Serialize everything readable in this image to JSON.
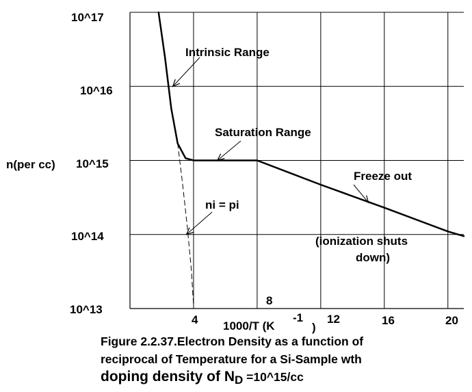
{
  "chart_data": {
    "type": "line",
    "ylabel": "n(per cc)",
    "xlabel_main": "1000/T (K",
    "xlabel_exp": "-1",
    "xlabel_close": ")",
    "y_scale": "log",
    "ylim": [
      10000000000000.0,
      1e+17
    ],
    "xlim": [
      0,
      21
    ],
    "grid": true,
    "x_ticks": [
      {
        "value": 4,
        "label": "4"
      },
      {
        "value": 8,
        "label": "8"
      },
      {
        "value": 12,
        "label": "12"
      },
      {
        "value": 16,
        "label": "16"
      },
      {
        "value": 20,
        "label": "20"
      }
    ],
    "x_grid": [
      4,
      8,
      12,
      16,
      20
    ],
    "y_ticks": [
      {
        "value": 10000000000000.0,
        "label": "10^13"
      },
      {
        "value": 100000000000000.0,
        "label": "10^14"
      },
      {
        "value": 1000000000000000.0,
        "label": "10^15"
      },
      {
        "value": 1e+16,
        "label": "10^16"
      },
      {
        "value": 1e+17,
        "label": "10^17"
      }
    ],
    "series": [
      {
        "style": "solid",
        "points": [
          [
            1.8,
            1e+17
          ],
          [
            2.2,
            2.5e+16
          ],
          [
            2.6,
            5000000000000000.0
          ],
          [
            3.0,
            1700000000000000.0
          ],
          [
            3.5,
            1070000000000000.0
          ],
          [
            4.0,
            1000000000000000.0
          ],
          [
            8.0,
            1000000000000000.0
          ],
          [
            12.0,
            470000000000000.0
          ],
          [
            16.0,
            230000000000000.0
          ],
          [
            20.0,
            110000000000000.0
          ],
          [
            21.0,
            95000000000000.0
          ]
        ]
      },
      {
        "style": "dashed",
        "points": [
          [
            3.0,
            1700000000000000.0
          ],
          [
            3.3,
            500000000000000.0
          ],
          [
            3.6,
            130000000000000.0
          ],
          [
            3.85,
            35000000000000.0
          ],
          [
            4.0,
            11000000000000.0
          ]
        ]
      }
    ],
    "annotations": [
      {
        "text": "Intrinsic Range",
        "arrow_to": [
          2.7,
          1e+16
        ]
      },
      {
        "text": "Saturation Range",
        "arrow_to": [
          5.5,
          1000000000000000.0
        ]
      },
      {
        "text": "Freeze out",
        "arrow_to": [
          15.0,
          270000000000000.0
        ]
      },
      {
        "text": "ni = pi",
        "arrow_to": [
          3.55,
          100000000000000.0
        ]
      },
      {
        "text": "(ionization shuts",
        "arrow_to": null
      },
      {
        "text": "down)",
        "arrow_to": null
      }
    ]
  },
  "caption": {
    "line1": "Figure 2.2.37.Electron Density as a function of",
    "line2": "reciprocal of Temperature for a Si-Sample wth",
    "line3_prefix": "doping density of N",
    "line3_sub": "D",
    "line3_suffix": " =10^15/cc"
  }
}
